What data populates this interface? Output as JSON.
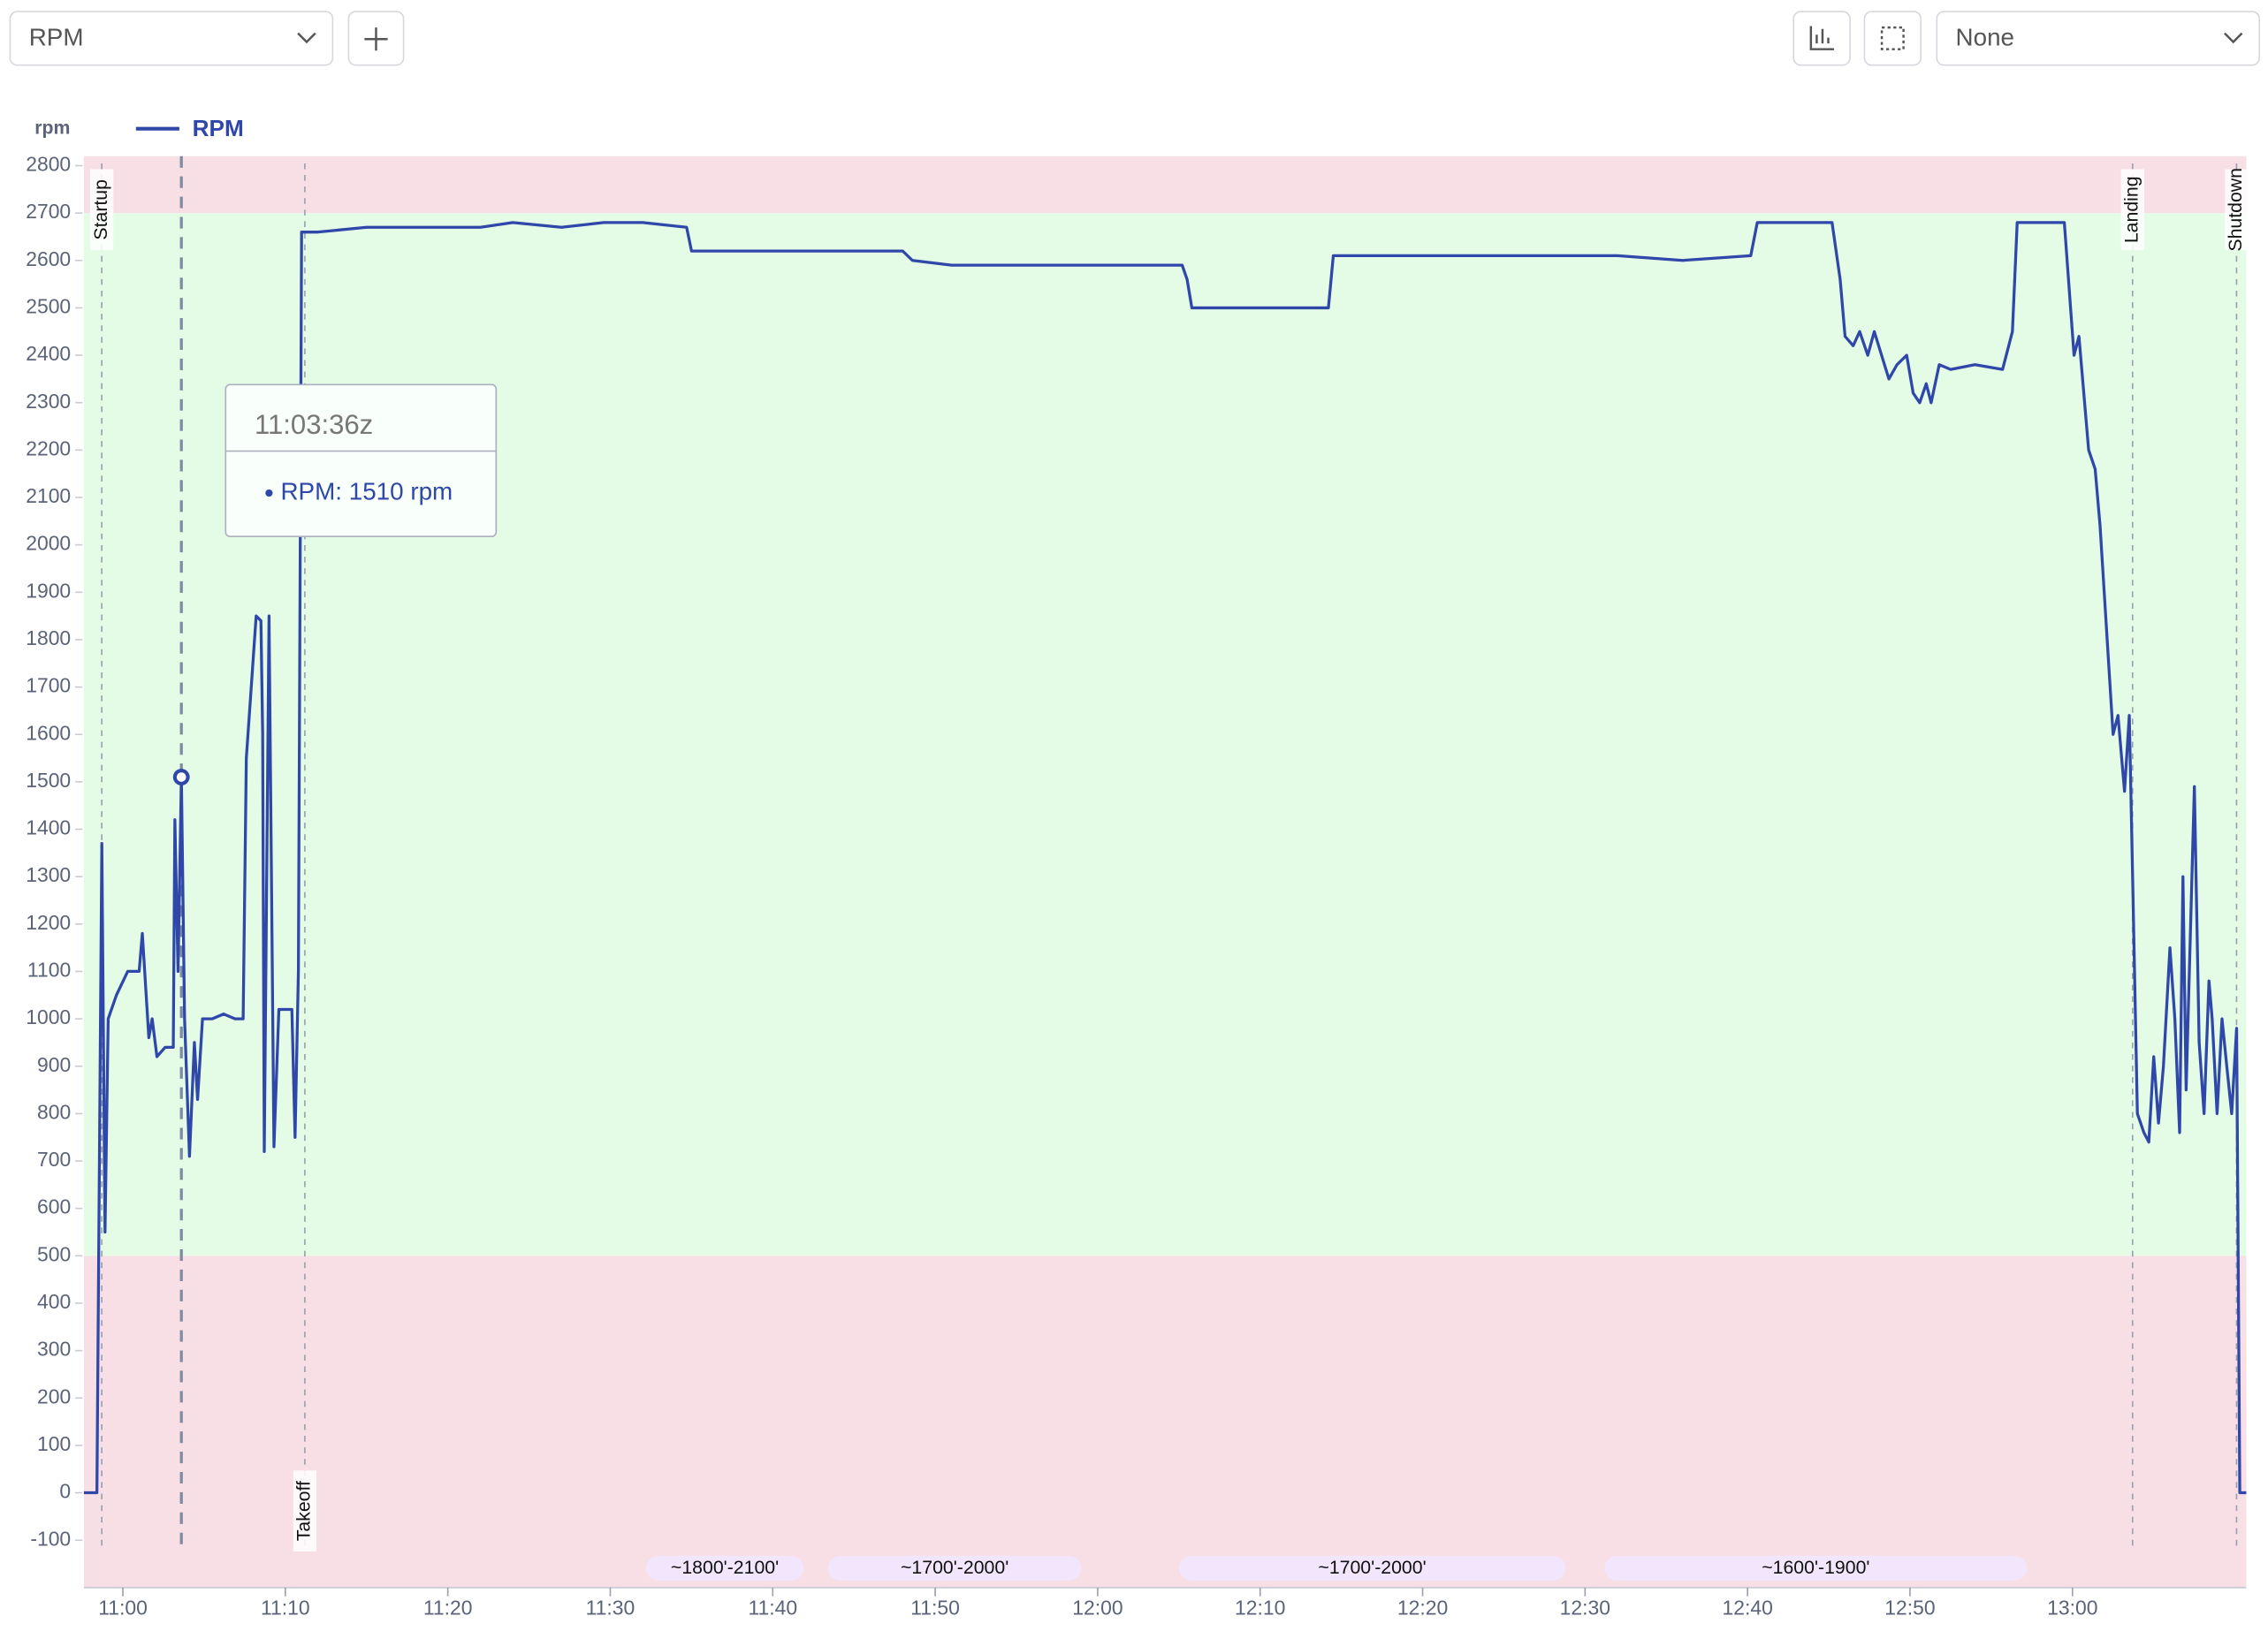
{
  "toolbar": {
    "metric": "RPM",
    "overlay": "None"
  },
  "chart_data": {
    "type": "line",
    "y_label": "rpm",
    "legend": "top-left",
    "x": [
      657.6,
      658.4,
      658.7,
      658.9,
      659.1,
      659.6,
      660.3,
      661.0,
      661.2,
      661.6,
      661.8,
      662.1,
      662.6,
      663.1,
      663.2,
      663.4,
      663.6,
      663.8,
      664.1,
      664.4,
      664.6,
      664.9,
      665.5,
      666.2,
      666.9,
      667.4,
      667.6,
      667.9,
      668.2,
      668.5,
      668.6,
      668.7,
      669.0,
      669.3,
      669.6,
      670.4,
      670.6,
      670.8,
      671.0,
      672.0,
      675.0,
      678.0,
      682.0,
      684.0,
      687.0,
      689.6,
      692.0,
      694.7,
      695.0,
      701.0,
      708.0,
      708.6,
      711.0,
      716.0,
      722.0,
      725.2,
      725.5,
      725.8,
      730.0,
      734.2,
      734.5,
      740.0,
      748.0,
      752.0,
      756.0,
      760.2,
      760.6,
      765.2,
      765.7,
      766.0,
      766.5,
      766.9,
      767.4,
      767.8,
      768.7,
      769.2,
      769.8,
      770.2,
      770.6,
      771.0,
      771.3,
      771.8,
      772.5,
      774.0,
      775.7,
      776.3,
      776.6,
      779.5,
      780.1,
      780.4,
      781.0,
      781.4,
      781.7,
      782.5,
      782.8,
      783.2,
      783.5,
      783.7,
      784.0,
      784.4,
      784.7,
      785.0,
      785.3,
      785.6,
      786.0,
      786.3,
      786.6,
      786.8,
      787.0,
      787.5,
      787.8,
      788.1,
      788.4,
      788.6,
      788.9,
      789.2,
      789.5,
      789.8,
      790.1,
      790.3,
      790.7
    ],
    "series": [
      {
        "name": "RPM",
        "color": "#2f47a8",
        "values": [
          0,
          0,
          1370,
          550,
          1000,
          1050,
          1100,
          1100,
          1180,
          960,
          1000,
          920,
          940,
          940,
          1420,
          1100,
          1510,
          1000,
          710,
          950,
          830,
          1000,
          1000,
          1010,
          1000,
          1000,
          1550,
          1700,
          1850,
          1840,
          1600,
          720,
          1850,
          730,
          1020,
          1020,
          750,
          1100,
          2660,
          2660,
          2670,
          2670,
          2670,
          2680,
          2670,
          2680,
          2680,
          2670,
          2620,
          2620,
          2620,
          2600,
          2590,
          2590,
          2590,
          2590,
          2560,
          2500,
          2500,
          2500,
          2610,
          2610,
          2610,
          2610,
          2600,
          2610,
          2680,
          2680,
          2560,
          2440,
          2420,
          2450,
          2400,
          2450,
          2350,
          2380,
          2400,
          2320,
          2300,
          2340,
          2300,
          2380,
          2370,
          2380,
          2370,
          2450,
          2680,
          2680,
          2400,
          2440,
          2200,
          2160,
          2040,
          1600,
          1640,
          1480,
          1640,
          1300,
          800,
          760,
          740,
          920,
          780,
          900,
          1150,
          1000,
          760,
          1300,
          850,
          1490,
          950,
          800,
          1080,
          1000,
          800,
          1000,
          900,
          800,
          980,
          0,
          0
        ]
      }
    ],
    "xlim": [
      657.6,
      790.7
    ],
    "xticks": [
      {
        "value": 660,
        "label": "11:00"
      },
      {
        "value": 670,
        "label": "11:10"
      },
      {
        "value": 680,
        "label": "11:20"
      },
      {
        "value": 690,
        "label": "11:30"
      },
      {
        "value": 700,
        "label": "11:40"
      },
      {
        "value": 710,
        "label": "11:50"
      },
      {
        "value": 720,
        "label": "12:00"
      },
      {
        "value": 730,
        "label": "12:10"
      },
      {
        "value": 740,
        "label": "12:20"
      },
      {
        "value": 750,
        "label": "12:30"
      },
      {
        "value": 760,
        "label": "12:40"
      },
      {
        "value": 770,
        "label": "12:50"
      },
      {
        "value": 780,
        "label": "13:00"
      }
    ],
    "ylim": [
      -200,
      2820
    ],
    "yticks": [
      -100,
      0,
      100,
      200,
      300,
      400,
      500,
      600,
      700,
      800,
      900,
      1000,
      1100,
      1200,
      1300,
      1400,
      1500,
      1600,
      1700,
      1800,
      1900,
      2000,
      2100,
      2200,
      2300,
      2400,
      2500,
      2600,
      2700,
      2800
    ],
    "ranges": [
      {
        "from": -200,
        "to": 500,
        "color": "#f8dfe6"
      },
      {
        "from": 500,
        "to": 2700,
        "color": "#e4fbe6"
      },
      {
        "from": 2700,
        "to": 2820,
        "color": "#f8dfe6"
      }
    ],
    "events": [
      {
        "label": "Startup",
        "x": 658.7,
        "anchor": "top"
      },
      {
        "label": "Takeoff",
        "x": 671.2,
        "anchor": "bottom"
      },
      {
        "label": "Landing",
        "x": 783.7,
        "anchor": "top"
      },
      {
        "label": "Shutdown",
        "x": 790.1,
        "anchor": "top"
      }
    ],
    "altitude_bands": [
      {
        "label": "~1800'-2100'",
        "start": 692.2,
        "end": 701.9
      },
      {
        "label": "~1700'-2000'",
        "start": 703.4,
        "end": 719.0
      },
      {
        "label": "~1700'-2000'",
        "start": 725.0,
        "end": 748.8
      },
      {
        "label": "~1600'-1900'",
        "start": 751.2,
        "end": 777.2
      }
    ],
    "cursor": {
      "x": 663.6,
      "value": 1510
    },
    "tooltip": {
      "time": "11:03:36z",
      "text": "RPM: 1510 rpm"
    }
  }
}
